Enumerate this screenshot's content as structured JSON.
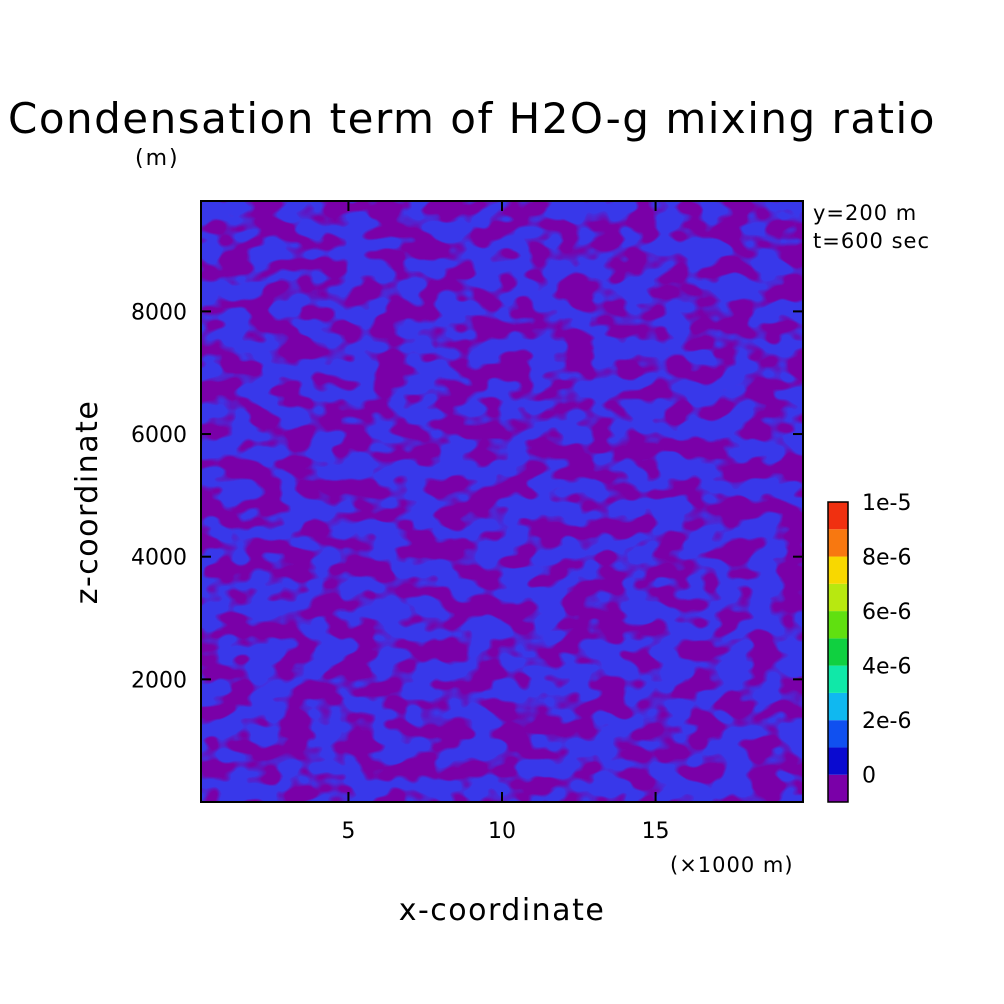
{
  "chart_data": {
    "type": "heatmap",
    "title": "Condensation term of H2O-g mixing ratio",
    "units": "(m)",
    "xlabel": "x-coordinate",
    "ylabel": "z-coordinate",
    "x_unit": "(×1000 m)",
    "annotations": [
      "y=200 m",
      "t=600 sec"
    ],
    "xlim": [
      0.2,
      19.8
    ],
    "ylim": [
      0,
      9800
    ],
    "xticks": [
      5,
      10,
      15
    ],
    "xtick_labels": [
      "5",
      "10",
      "15"
    ],
    "yticks": [
      2000,
      4000,
      6000,
      8000
    ],
    "ytick_labels": [
      "2000",
      "4000",
      "6000",
      "8000"
    ],
    "field_values_present": [
      0,
      -1e-07
    ],
    "colorbar": {
      "labels": [
        "1e-5",
        "8e-6",
        "6e-6",
        "4e-6",
        "2e-6",
        "0"
      ],
      "levels": [
        -1e-06,
        0,
        1e-06,
        2e-06,
        3e-06,
        4e-06,
        5e-06,
        6e-06,
        7e-06,
        8e-06,
        9e-06,
        1e-05
      ],
      "colors": [
        "#7a00a8",
        "#0a0ad0",
        "#1050f0",
        "#10b8f0",
        "#10e8a8",
        "#10d040",
        "#60e010",
        "#b8e810",
        "#f8d800",
        "#f87810",
        "#f03010"
      ]
    }
  }
}
